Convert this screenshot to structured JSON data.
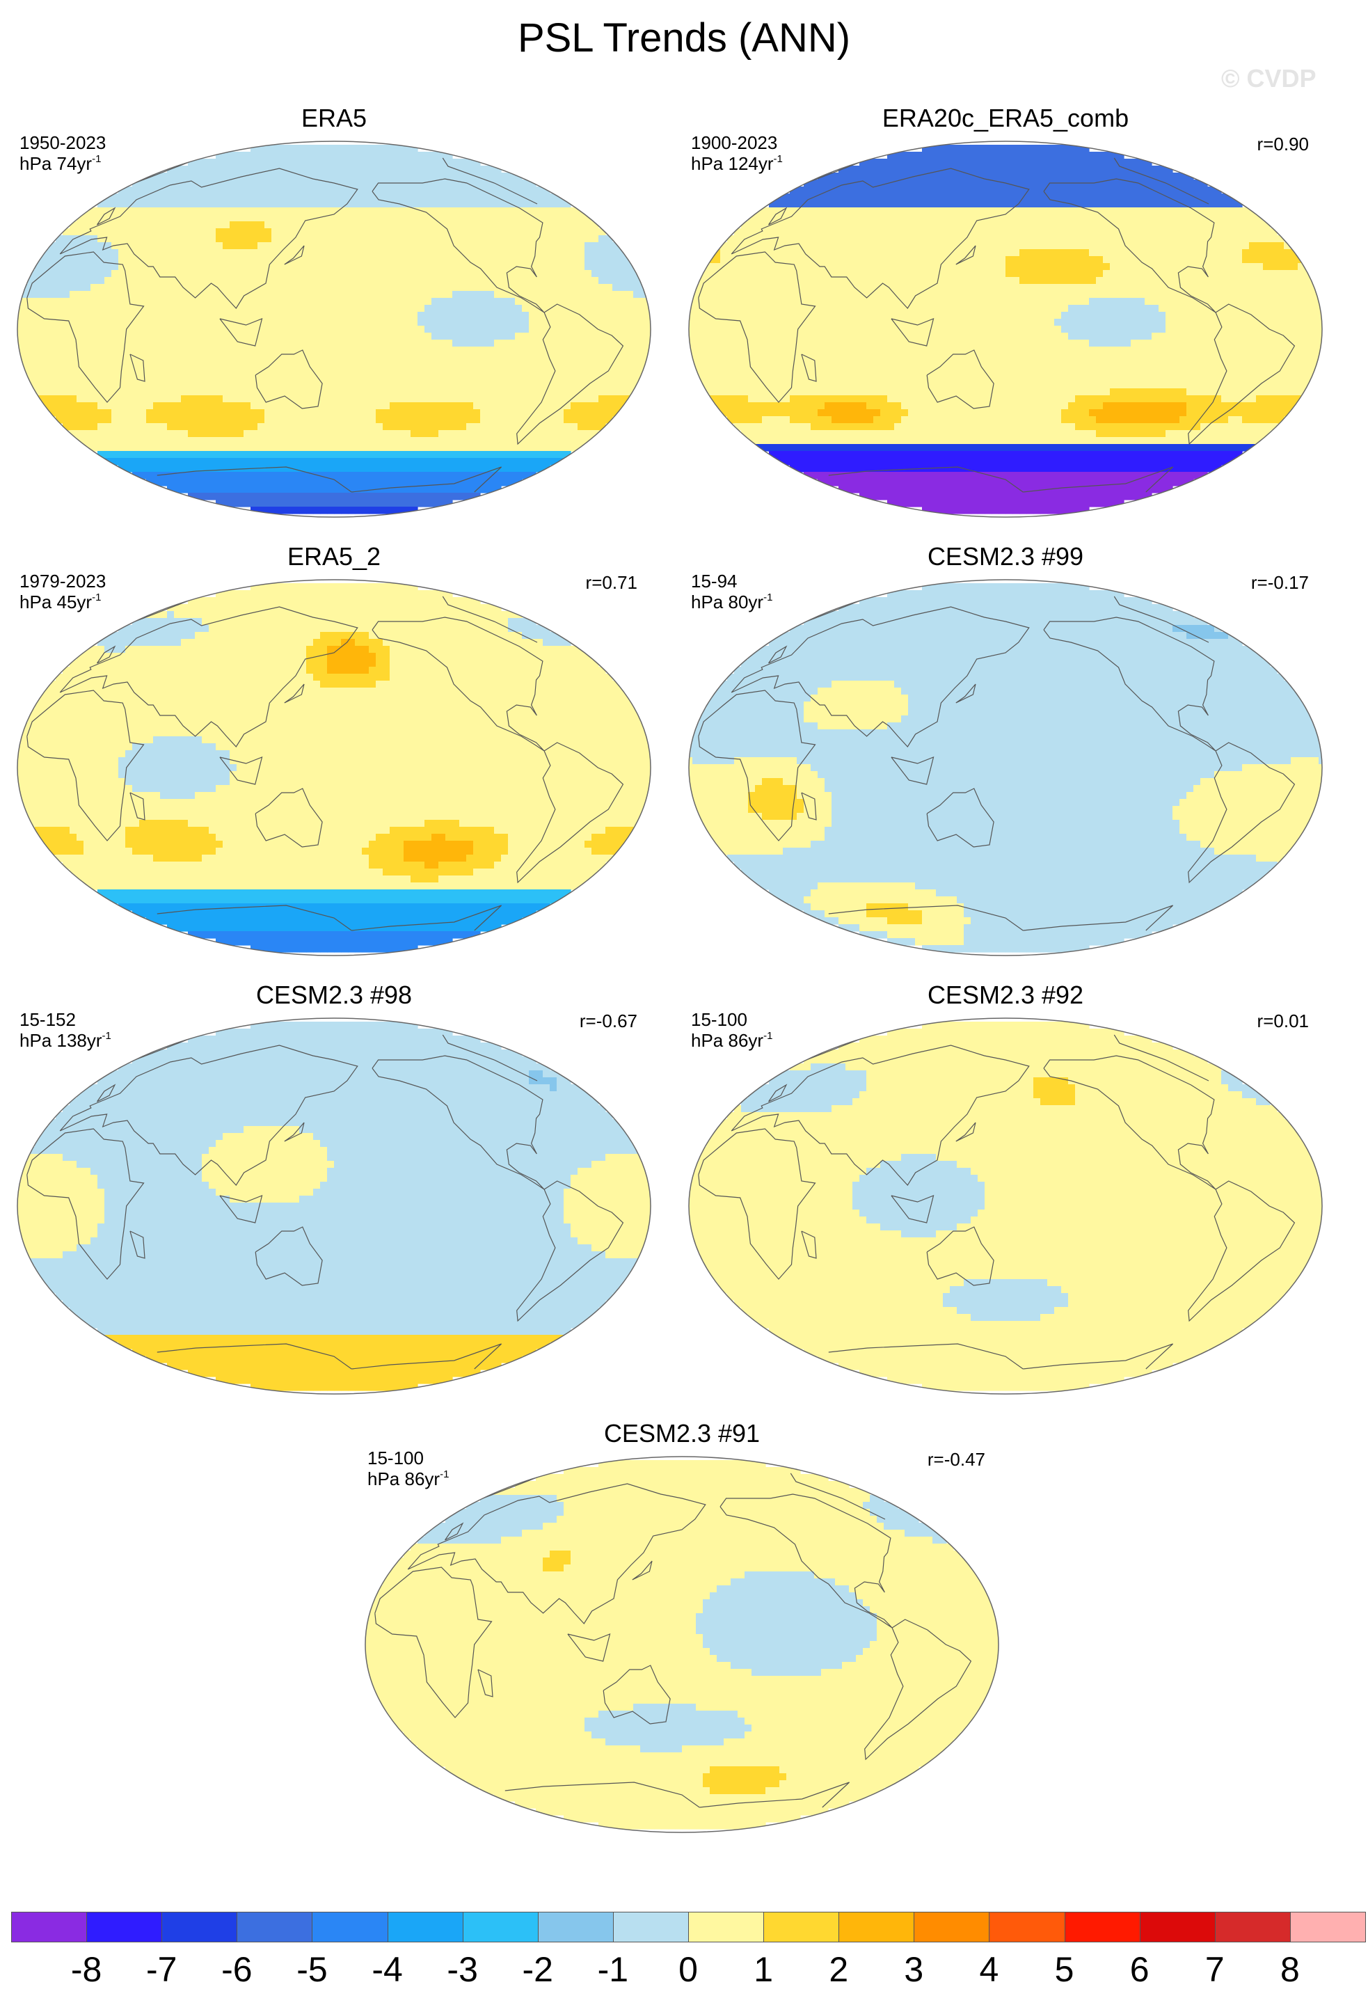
{
  "title": "PSL Trends (ANN)",
  "watermark": "© CVDP",
  "panels": [
    {
      "title": "ERA5",
      "years": "1950-2023",
      "units": "hPa 74yr",
      "units_sup": "-1",
      "corr": "",
      "field": "era5",
      "amp": 1.0
    },
    {
      "title": "ERA20c_ERA5_comb",
      "years": "1900-2023",
      "units": "hPa 124yr",
      "units_sup": "-1",
      "corr": "r=0.90",
      "field": "era20c",
      "amp": 1.0
    },
    {
      "title": "ERA5_2",
      "years": "1979-2023",
      "units": "hPa 45yr",
      "units_sup": "-1",
      "corr": "r=0.71",
      "field": "era5_2",
      "amp": 1.0
    },
    {
      "title": "CESM2.3 #99",
      "years": "15-94",
      "units": "hPa 80yr",
      "units_sup": "-1",
      "corr": "r=-0.17",
      "field": "c99",
      "amp": 1.0
    },
    {
      "title": "CESM2.3 #98",
      "years": "15-152",
      "units": "hPa 138yr",
      "units_sup": "-1",
      "corr": "r=-0.67",
      "field": "c98",
      "amp": 1.0
    },
    {
      "title": "CESM2.3 #92",
      "years": "15-100",
      "units": "hPa 86yr",
      "units_sup": "-1",
      "corr": "r=0.01",
      "field": "c92",
      "amp": 1.0
    },
    {
      "title": "CESM2.3 #91",
      "years": "15-100",
      "units": "hPa 86yr",
      "units_sup": "-1",
      "corr": "r=-0.47",
      "field": "c91",
      "amp": 1.0
    }
  ],
  "colorbar": {
    "colors": [
      "#8a2be2",
      "#2f1cff",
      "#1f3fe6",
      "#3c6fe0",
      "#2a86f5",
      "#1aa6f7",
      "#2cc0f7",
      "#86c6ec",
      "#b8dff0",
      "#fff8a0",
      "#ffd830",
      "#ffb60a",
      "#ff8c00",
      "#ff5a0a",
      "#ff1a00",
      "#dc0a0a",
      "#d62a2a",
      "#ffb0b0"
    ],
    "labels": [
      "-8",
      "-7",
      "-6",
      "-5",
      "-4",
      "-3",
      "-2",
      "-1",
      "0",
      "1",
      "2",
      "3",
      "4",
      "5",
      "6",
      "7",
      "8"
    ]
  }
}
